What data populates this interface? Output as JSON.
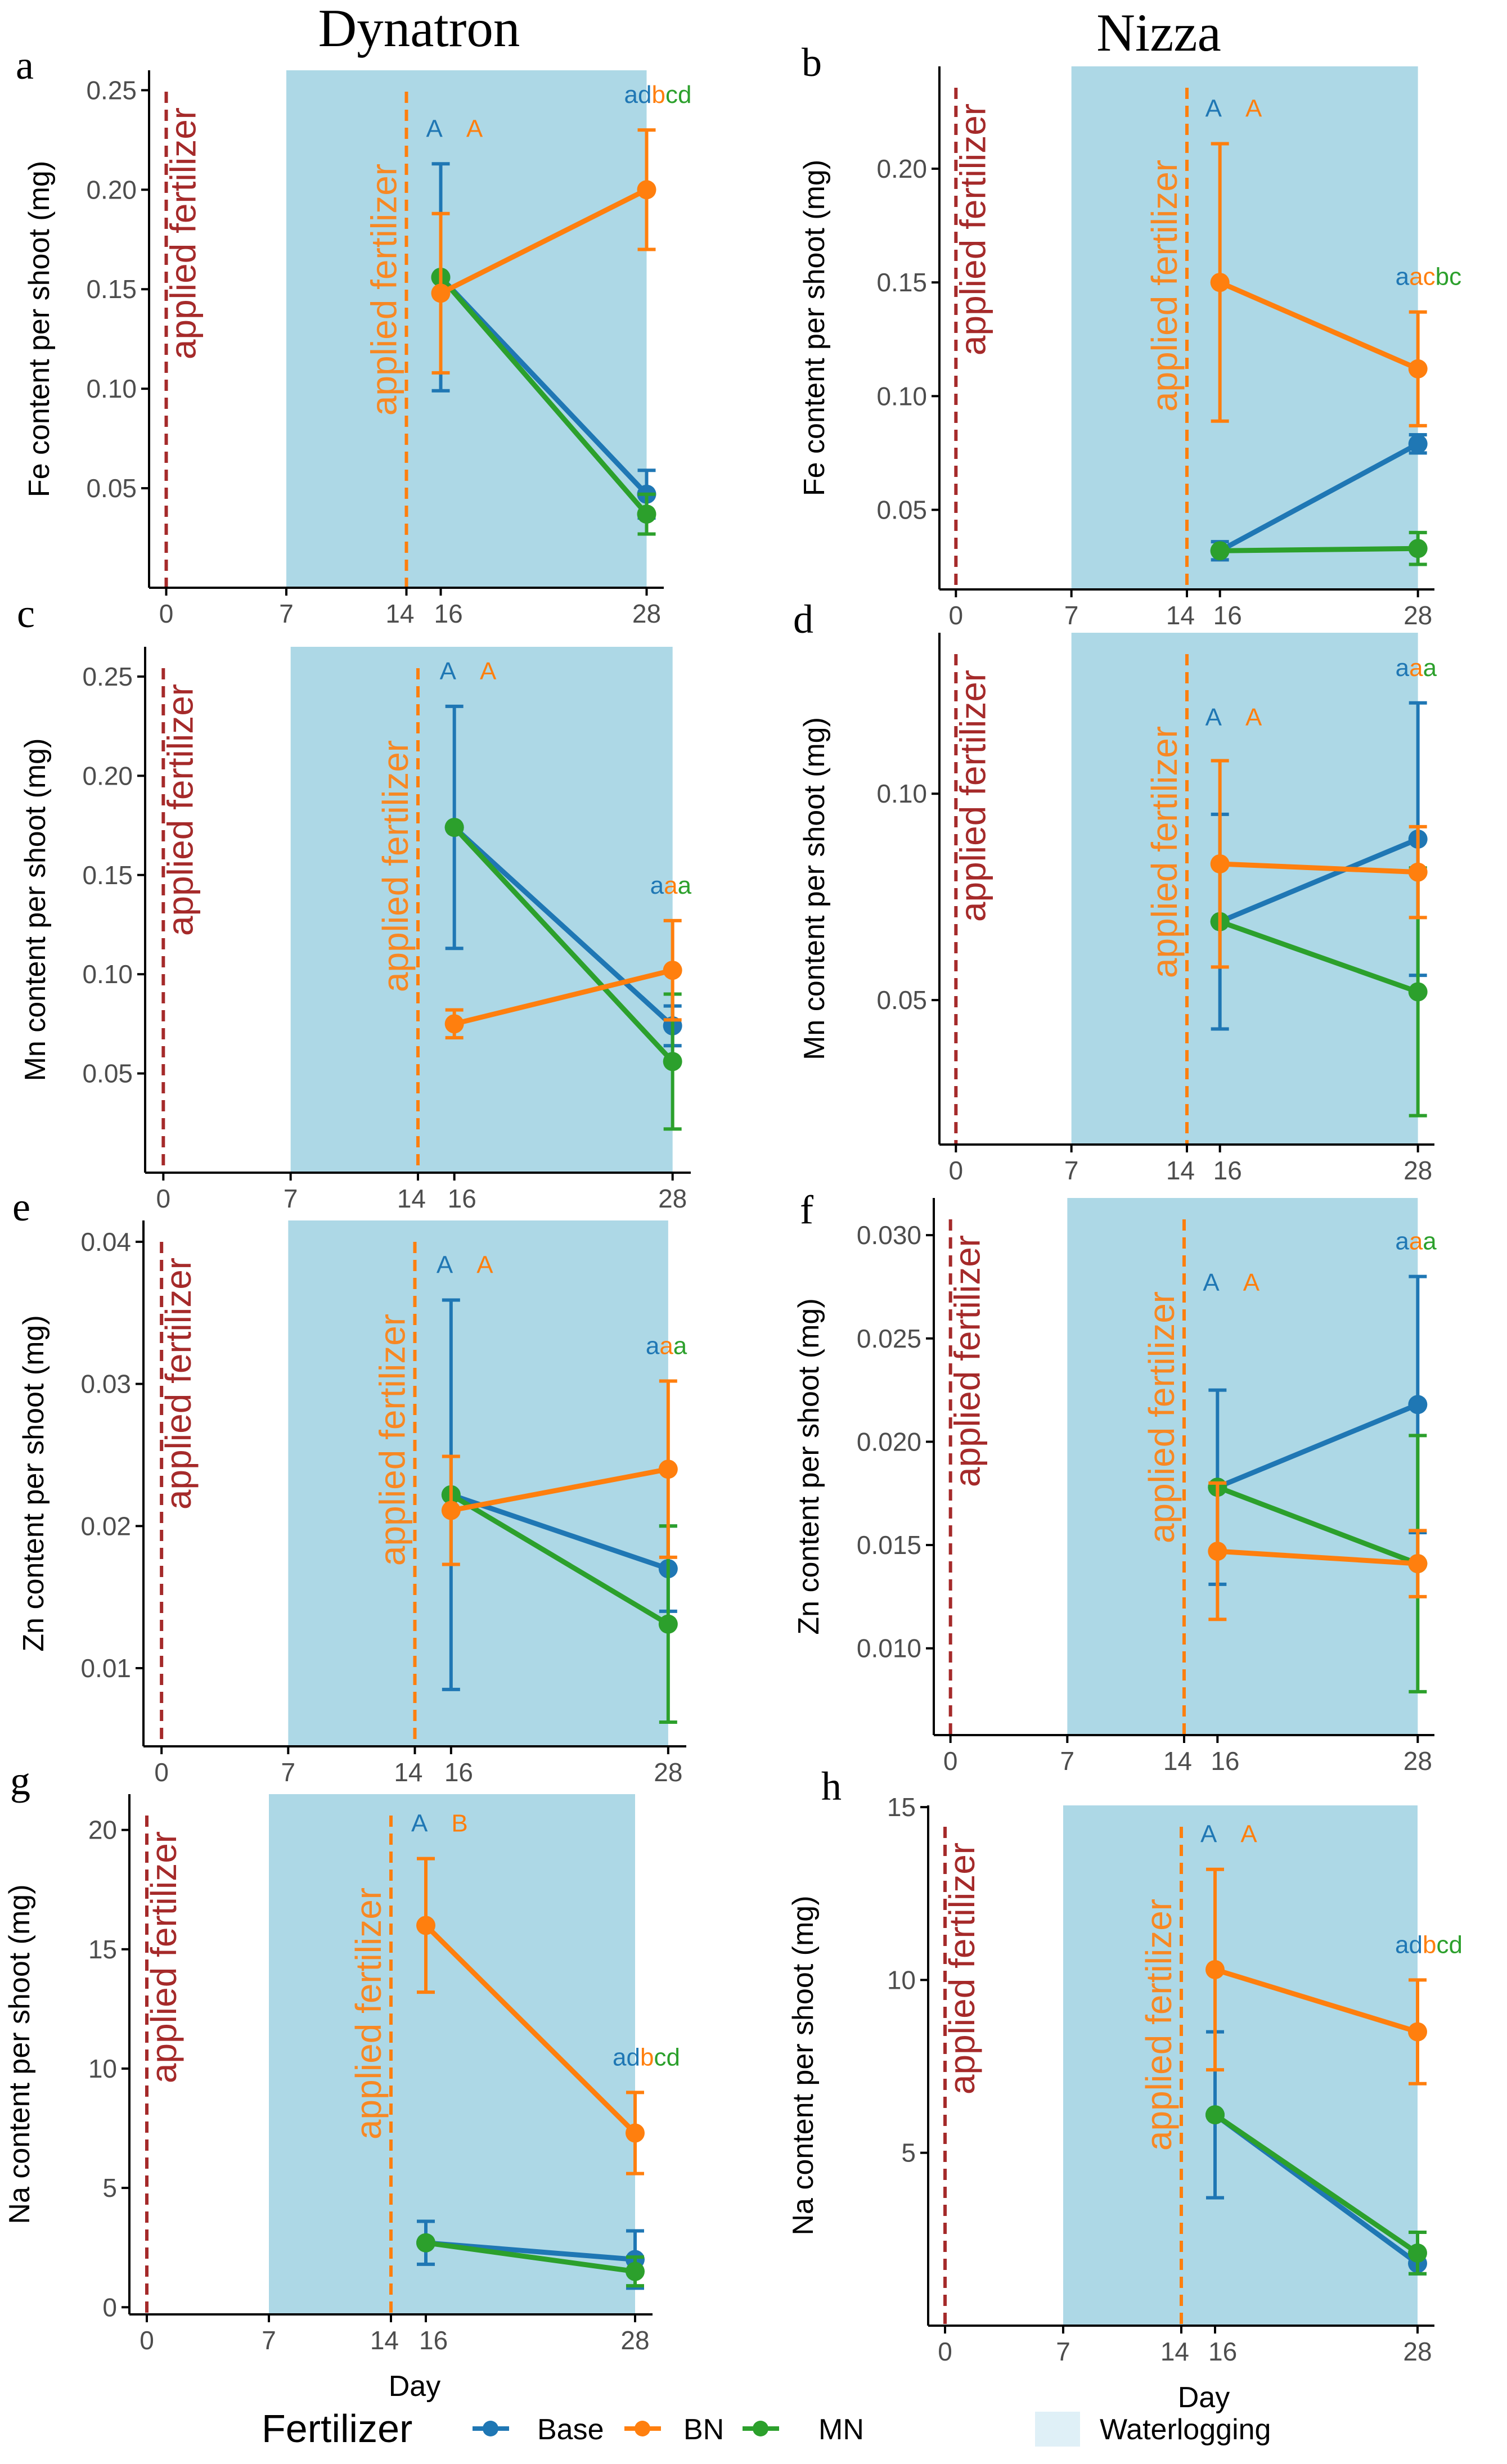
{
  "colors": {
    "Base": "#1f77b4",
    "BN": "#ff7f0e",
    "MN": "#2ca02c",
    "waterlogging": "#add8e6",
    "fert0": "#a52a2a",
    "fert14": "#ff7f0e",
    "axis": "#000000",
    "tick": "#4d4d4d"
  },
  "columns": [
    "Dynatron",
    "Nizza"
  ],
  "vline_labels": [
    "applied fertilizer",
    "applied fertilizer"
  ],
  "legend": {
    "title": "Fertilizer",
    "items": [
      "Base",
      "BN",
      "MN"
    ],
    "waterlogging_label": "Waterlogging"
  },
  "chart_data": [
    {
      "panel": "a",
      "type": "line",
      "cultivar": "Dynatron",
      "xlabel": "",
      "ylabel": "Fe content per shoot (mg)",
      "xlim": [
        -1,
        29
      ],
      "ylim": [
        0,
        0.26
      ],
      "xticks": [
        0,
        7,
        14,
        16,
        28
      ],
      "xtick_labels": [
        "0",
        "7",
        "14",
        "16",
        "28"
      ],
      "yticks": [
        0.05,
        0.1,
        0.15,
        0.2,
        0.25
      ],
      "ytick_labels": [
        "0.05",
        "0.10",
        "0.15",
        "0.20",
        "0.25"
      ],
      "waterlogging": [
        7,
        28
      ],
      "fertilizer_days": [
        0,
        14
      ],
      "series": [
        {
          "name": "Base",
          "x": [
            16,
            28
          ],
          "y": [
            0.156,
            0.047
          ],
          "err": [
            0.057,
            0.012
          ]
        },
        {
          "name": "BN",
          "x": [
            16,
            28
          ],
          "y": [
            0.148,
            0.2
          ],
          "err": [
            0.04,
            0.03
          ]
        },
        {
          "name": "MN",
          "x": [
            16,
            28
          ],
          "y": [
            0.156,
            0.037
          ],
          "err": [
            0.0,
            0.01
          ]
        }
      ],
      "letters": [
        {
          "x": 16,
          "parts": [
            {
              "t": "A",
              "s": "Base"
            },
            {
              "t": "A",
              "s": "BN"
            }
          ]
        },
        {
          "x": 28,
          "parts": [
            {
              "t": "ad",
              "s": "Base"
            },
            {
              "t": "b",
              "s": "BN"
            },
            {
              "t": "cd",
              "s": "MN"
            }
          ]
        }
      ]
    },
    {
      "panel": "b",
      "type": "line",
      "cultivar": "Nizza",
      "xlabel": "",
      "ylabel": "Fe content per shoot (mg)",
      "xlim": [
        -1,
        29
      ],
      "ylim": [
        0.015,
        0.245
      ],
      "xticks": [
        0,
        7,
        14,
        16,
        28
      ],
      "xtick_labels": [
        "0",
        "7",
        "14",
        "16",
        "28"
      ],
      "yticks": [
        0.05,
        0.1,
        0.15,
        0.2
      ],
      "ytick_labels": [
        "0.05",
        "0.10",
        "0.15",
        "0.20"
      ],
      "waterlogging": [
        7,
        28
      ],
      "fertilizer_days": [
        0,
        14
      ],
      "series": [
        {
          "name": "Base",
          "x": [
            16,
            28
          ],
          "y": [
            0.032,
            0.079
          ],
          "err": [
            0.004,
            0.004
          ]
        },
        {
          "name": "BN",
          "x": [
            16,
            28
          ],
          "y": [
            0.15,
            0.112
          ],
          "err": [
            0.061,
            0.025
          ]
        },
        {
          "name": "MN",
          "x": [
            16,
            28
          ],
          "y": [
            0.032,
            0.033
          ],
          "err": [
            0.0,
            0.007
          ]
        }
      ],
      "letters": [
        {
          "x": 16,
          "parts": [
            {
              "t": "A",
              "s": "Base"
            },
            {
              "t": "A",
              "s": "BN"
            }
          ]
        },
        {
          "x": 28,
          "parts": [
            {
              "t": "a",
              "s": "Base"
            },
            {
              "t": "ac",
              "s": "BN"
            },
            {
              "t": "bc",
              "s": "MN"
            }
          ]
        }
      ]
    },
    {
      "panel": "c",
      "type": "line",
      "cultivar": "Dynatron",
      "xlabel": "",
      "ylabel": "Mn content per shoot (mg)",
      "xlim": [
        -1,
        29
      ],
      "ylim": [
        0,
        0.265
      ],
      "xticks": [
        0,
        7,
        14,
        16,
        28
      ],
      "xtick_labels": [
        "0",
        "7",
        "14",
        "16",
        "28"
      ],
      "yticks": [
        0.05,
        0.1,
        0.15,
        0.2,
        0.25
      ],
      "ytick_labels": [
        "0.05",
        "0.10",
        "0.15",
        "0.20",
        "0.25"
      ],
      "waterlogging": [
        7,
        28
      ],
      "fertilizer_days": [
        0,
        14
      ],
      "series": [
        {
          "name": "Base",
          "x": [
            16,
            28
          ],
          "y": [
            0.174,
            0.074
          ],
          "err": [
            0.061,
            0.01
          ]
        },
        {
          "name": "BN",
          "x": [
            16,
            28
          ],
          "y": [
            0.075,
            0.102
          ],
          "err": [
            0.007,
            0.025
          ]
        },
        {
          "name": "MN",
          "x": [
            16,
            28
          ],
          "y": [
            0.174,
            0.056
          ],
          "err": [
            0.0,
            0.034
          ]
        }
      ],
      "letters": [
        {
          "x": 16,
          "parts": [
            {
              "t": "A",
              "s": "Base"
            },
            {
              "t": "A",
              "s": "BN"
            }
          ]
        },
        {
          "x": 28,
          "parts": [
            {
              "t": "a",
              "s": "Base"
            },
            {
              "t": "a",
              "s": "BN"
            },
            {
              "t": "a",
              "s": "MN"
            }
          ]
        }
      ]
    },
    {
      "panel": "d",
      "type": "line",
      "cultivar": "Nizza",
      "xlabel": "",
      "ylabel": "Mn content per shoot (mg)",
      "xlim": [
        -1,
        29
      ],
      "ylim": [
        0.015,
        0.139
      ],
      "xticks": [
        0,
        7,
        14,
        16,
        28
      ],
      "xtick_labels": [
        "0",
        "7",
        "14",
        "16",
        "28"
      ],
      "yticks": [
        0.05,
        0.1
      ],
      "ytick_labels": [
        "0.05",
        "0.10"
      ],
      "waterlogging": [
        7,
        28
      ],
      "fertilizer_days": [
        0,
        14
      ],
      "series": [
        {
          "name": "Base",
          "x": [
            16,
            28
          ],
          "y": [
            0.069,
            0.089
          ],
          "err": [
            0.026,
            0.033
          ]
        },
        {
          "name": "BN",
          "x": [
            16,
            28
          ],
          "y": [
            0.083,
            0.081
          ],
          "err": [
            0.025,
            0.011
          ]
        },
        {
          "name": "MN",
          "x": [
            16,
            28
          ],
          "y": [
            0.069,
            0.052
          ],
          "err": [
            0.0,
            0.03
          ]
        }
      ],
      "letters": [
        {
          "x": 16,
          "parts": [
            {
              "t": "A",
              "s": "Base"
            },
            {
              "t": "A",
              "s": "BN"
            }
          ]
        },
        {
          "x": 28,
          "parts": [
            {
              "t": "a",
              "s": "Base"
            },
            {
              "t": "a",
              "s": "BN"
            },
            {
              "t": "a",
              "s": "MN"
            }
          ]
        }
      ]
    },
    {
      "panel": "e",
      "type": "line",
      "cultivar": "Dynatron",
      "xlabel": "",
      "ylabel": "Zn content per shoot (mg)",
      "xlim": [
        -1,
        29
      ],
      "ylim": [
        0.0045,
        0.0415
      ],
      "xticks": [
        0,
        7,
        14,
        16,
        28
      ],
      "xtick_labels": [
        "0",
        "7",
        "14",
        "16",
        "28"
      ],
      "yticks": [
        0.01,
        0.02,
        0.03,
        0.04
      ],
      "ytick_labels": [
        "0.01",
        "0.02",
        "0.03",
        "0.04"
      ],
      "waterlogging": [
        7,
        28
      ],
      "fertilizer_days": [
        0,
        14
      ],
      "series": [
        {
          "name": "Base",
          "x": [
            16,
            28
          ],
          "y": [
            0.0222,
            0.017
          ],
          "err": [
            0.0137,
            0.003
          ]
        },
        {
          "name": "BN",
          "x": [
            16,
            28
          ],
          "y": [
            0.0211,
            0.024
          ],
          "err": [
            0.0038,
            0.0062
          ]
        },
        {
          "name": "MN",
          "x": [
            16,
            28
          ],
          "y": [
            0.0222,
            0.0131
          ],
          "err": [
            0.0,
            0.0069
          ]
        }
      ],
      "letters": [
        {
          "x": 16,
          "parts": [
            {
              "t": "A",
              "s": "Base"
            },
            {
              "t": "A",
              "s": "BN"
            }
          ]
        },
        {
          "x": 28,
          "parts": [
            {
              "t": "a",
              "s": "Base"
            },
            {
              "t": "a",
              "s": "BN"
            },
            {
              "t": "a",
              "s": "MN"
            }
          ]
        }
      ]
    },
    {
      "panel": "f",
      "type": "line",
      "cultivar": "Nizza",
      "xlabel": "",
      "ylabel": "Zn content per shoot (mg)",
      "xlim": [
        -1,
        29
      ],
      "ylim": [
        0.0058,
        0.0318
      ],
      "xticks": [
        0,
        7,
        14,
        16,
        28
      ],
      "xtick_labels": [
        "0",
        "7",
        "14",
        "16",
        "28"
      ],
      "yticks": [
        0.01,
        0.015,
        0.02,
        0.025,
        0.03
      ],
      "ytick_labels": [
        "0.010",
        "0.015",
        "0.020",
        "0.025",
        "0.030"
      ],
      "waterlogging": [
        7,
        28
      ],
      "fertilizer_days": [
        0,
        14
      ],
      "series": [
        {
          "name": "Base",
          "x": [
            16,
            28
          ],
          "y": [
            0.0178,
            0.0218
          ],
          "err": [
            0.0047,
            0.0062
          ]
        },
        {
          "name": "BN",
          "x": [
            16,
            28
          ],
          "y": [
            0.0147,
            0.0141
          ],
          "err": [
            0.0033,
            0.0016
          ]
        },
        {
          "name": "MN",
          "x": [
            16,
            28
          ],
          "y": [
            0.0178,
            0.0141
          ],
          "err": [
            0.0,
            0.0062
          ]
        }
      ],
      "letters": [
        {
          "x": 16,
          "parts": [
            {
              "t": "A",
              "s": "Base"
            },
            {
              "t": "A",
              "s": "BN"
            }
          ]
        },
        {
          "x": 28,
          "parts": [
            {
              "t": "a",
              "s": "Base"
            },
            {
              "t": "a",
              "s": "BN"
            },
            {
              "t": "a",
              "s": "MN"
            }
          ]
        }
      ]
    },
    {
      "panel": "g",
      "type": "line",
      "cultivar": "Dynatron",
      "xlabel": "Day",
      "ylabel": "Na content per shoot (mg)",
      "xlim": [
        -1,
        29
      ],
      "ylim": [
        -0.3,
        21.5
      ],
      "xticks": [
        0,
        7,
        14,
        16,
        28
      ],
      "xtick_labels": [
        "0",
        "7",
        "14",
        "16",
        "28"
      ],
      "yticks": [
        0,
        5,
        10,
        15,
        20
      ],
      "ytick_labels": [
        "0",
        "5",
        "10",
        "15",
        "20"
      ],
      "waterlogging": [
        7,
        28
      ],
      "fertilizer_days": [
        0,
        14
      ],
      "series": [
        {
          "name": "Base",
          "x": [
            16,
            28
          ],
          "y": [
            2.7,
            2.0
          ],
          "err": [
            0.9,
            1.2
          ]
        },
        {
          "name": "BN",
          "x": [
            16,
            28
          ],
          "y": [
            16.0,
            7.3
          ],
          "err": [
            2.8,
            1.7
          ]
        },
        {
          "name": "MN",
          "x": [
            16,
            28
          ],
          "y": [
            2.7,
            1.5
          ],
          "err": [
            0.0,
            0.6
          ]
        }
      ],
      "letters": [
        {
          "x": 16,
          "parts": [
            {
              "t": "A",
              "s": "Base"
            },
            {
              "t": "B",
              "s": "BN"
            }
          ]
        },
        {
          "x": 28,
          "parts": [
            {
              "t": "ad",
              "s": "Base"
            },
            {
              "t": "b",
              "s": "BN"
            },
            {
              "t": "cd",
              "s": "MN"
            }
          ]
        }
      ]
    },
    {
      "panel": "h",
      "type": "line",
      "cultivar": "Nizza",
      "xlabel": "Day",
      "ylabel": "Na content per shoot (mg)",
      "xlim": [
        -1,
        29
      ],
      "ylim": [
        0,
        15.05
      ],
      "xticks": [
        0,
        7,
        14,
        16,
        28
      ],
      "xtick_labels": [
        "0",
        "7",
        "14",
        "16",
        "28"
      ],
      "yticks": [
        5,
        10,
        15
      ],
      "ytick_labels": [
        "5",
        "10",
        "15"
      ],
      "waterlogging": [
        7,
        28
      ],
      "fertilizer_days": [
        0,
        14
      ],
      "series": [
        {
          "name": "Base",
          "x": [
            16,
            28
          ],
          "y": [
            6.1,
            1.8
          ],
          "err": [
            2.4,
            0.3
          ]
        },
        {
          "name": "BN",
          "x": [
            16,
            28
          ],
          "y": [
            10.3,
            8.5
          ],
          "err": [
            2.9,
            1.5
          ]
        },
        {
          "name": "MN",
          "x": [
            16,
            28
          ],
          "y": [
            6.1,
            2.1
          ],
          "err": [
            0.0,
            0.6
          ]
        }
      ],
      "letters": [
        {
          "x": 16,
          "parts": [
            {
              "t": "A",
              "s": "Base"
            },
            {
              "t": "A",
              "s": "BN"
            }
          ]
        },
        {
          "x": 28,
          "parts": [
            {
              "t": "ad",
              "s": "Base"
            },
            {
              "t": "b",
              "s": "BN"
            },
            {
              "t": "cd",
              "s": "MN"
            }
          ]
        }
      ]
    }
  ]
}
